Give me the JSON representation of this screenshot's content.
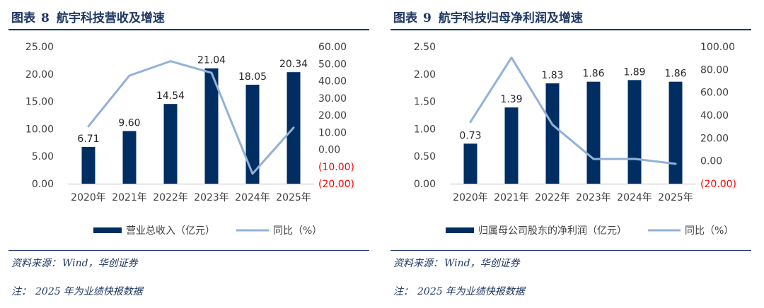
{
  "charts": [
    {
      "figure_label": "图表",
      "figure_number": "8",
      "title": "航宇科技营收及增速",
      "source_label": "资料来源",
      "source_text": "Wind，华创证券",
      "footnote_label": "注",
      "footnote_year": "2025",
      "footnote_text": "年为业绩快报数据",
      "chart_data": {
        "type": "bar",
        "categories": [
          "2020年",
          "2021年",
          "2022年",
          "2023年",
          "2024年",
          "2025年"
        ],
        "series": [
          {
            "name": "营业总收入（亿元）",
            "type": "bar",
            "axis": "left",
            "values": [
              6.71,
              9.6,
              14.54,
              21.04,
              18.05,
              20.34
            ],
            "labels": [
              "6.71",
              "9.60",
              "14.54",
              "21.04",
              "18.05",
              "20.34"
            ]
          },
          {
            "name": "同比（%）",
            "type": "line",
            "axis": "right",
            "values": [
              13.5,
              43.1,
              51.5,
              44.7,
              -14.2,
              12.7
            ]
          }
        ],
        "left_axis": {
          "min": 0,
          "max": 25,
          "ticks": [
            "0.00",
            "5.00",
            "10.00",
            "15.00",
            "20.00",
            "25.00"
          ]
        },
        "right_axis": {
          "min": -20,
          "max": 60,
          "ticks": [
            "(20.00)",
            "(10.00)",
            "0.00",
            "10.00",
            "20.00",
            "30.00",
            "40.00",
            "50.00",
            "60.00"
          ],
          "negative_color": "#ff0000"
        },
        "legend_position": "bottom",
        "grid": false,
        "colors": {
          "bar": "#002e62",
          "line": "#92b1d9"
        }
      }
    },
    {
      "figure_label": "图表",
      "figure_number": "9",
      "title": "航宇科技归母净利润及增速",
      "source_label": "资料来源",
      "source_text": "Wind，华创证券",
      "footnote_label": "注",
      "footnote_year": "2025",
      "footnote_text": "年为业绩快报数据",
      "chart_data": {
        "type": "bar",
        "categories": [
          "2020年",
          "2021年",
          "2022年",
          "2023年",
          "2024年",
          "2025年"
        ],
        "series": [
          {
            "name": "归属母公司股东的净利润（亿元）",
            "type": "bar",
            "axis": "left",
            "values": [
              0.73,
              1.39,
              1.83,
              1.86,
              1.89,
              1.86
            ],
            "labels": [
              "0.73",
              "1.39",
              "1.83",
              "1.86",
              "1.89",
              "1.86"
            ]
          },
          {
            "name": "同比（%）",
            "type": "line",
            "axis": "right",
            "values": [
              34.0,
              90.4,
              31.6,
              1.6,
              1.7,
              -2.6
            ]
          }
        ],
        "left_axis": {
          "min": 0,
          "max": 2.5,
          "ticks": [
            "0.00",
            "0.50",
            "1.00",
            "1.50",
            "2.00",
            "2.50"
          ]
        },
        "right_axis": {
          "min": -20,
          "max": 100,
          "ticks": [
            "(20.00)",
            "0.00",
            "20.00",
            "40.00",
            "60.00",
            "80.00",
            "100.00"
          ],
          "negative_color": "#ff0000"
        },
        "legend_position": "bottom",
        "grid": false,
        "colors": {
          "bar": "#002e62",
          "line": "#92b1d9"
        }
      }
    }
  ]
}
